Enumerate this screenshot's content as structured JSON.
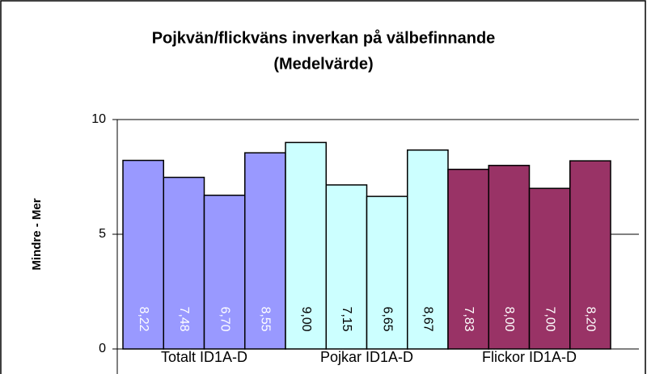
{
  "chart_data": {
    "type": "bar",
    "title": [
      "Pojkvän/flickväns inverkan på välbefinnande",
      "(Medelvärde)"
    ],
    "y_label": "Mindre - Mer",
    "ylim": [
      0,
      10
    ],
    "yticks": [
      0,
      5,
      10
    ],
    "grid": true,
    "groups": [
      {
        "category": "Totalt ID1A-D",
        "color": "#9999ff",
        "label_color": "#ffffff",
        "values": [
          8.22,
          7.48,
          6.7,
          8.55
        ],
        "value_labels": [
          "8,22",
          "7,48",
          "6,70",
          "8,55"
        ]
      },
      {
        "category": "Pojkar ID1A-D",
        "color": "#ccffff",
        "label_color": "#000000",
        "values": [
          9.0,
          7.15,
          6.65,
          8.67
        ],
        "value_labels": [
          "9,00",
          "7,15",
          "6,65",
          "8,67"
        ]
      },
      {
        "category": "Flickor ID1A-D",
        "color": "#993366",
        "label_color": "#ffffff",
        "values": [
          7.83,
          8.0,
          7.0,
          8.2
        ],
        "value_labels": [
          "7,83",
          "8,00",
          "7,00",
          "8,20"
        ]
      }
    ]
  }
}
